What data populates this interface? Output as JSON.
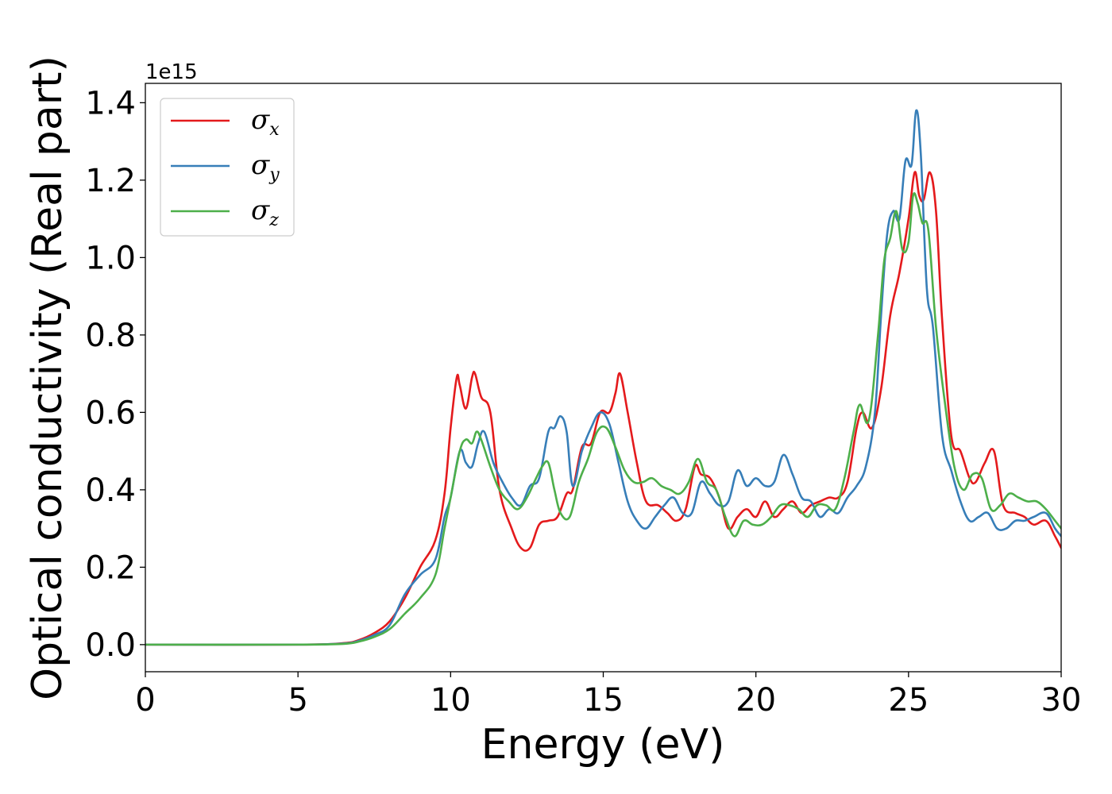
{
  "chart_data": {
    "type": "line",
    "xlabel": "Energy (eV)",
    "ylabel": "Optical conductivity (Real part)",
    "y_offset_label": "1e15",
    "xlim": [
      0,
      30
    ],
    "ylim": [
      -0.07,
      1.45
    ],
    "y_scale_factor": 1000000000000000.0,
    "x_ticks": [
      0,
      5,
      10,
      15,
      20,
      25,
      30
    ],
    "x_tick_labels": [
      "0",
      "5",
      "10",
      "15",
      "20",
      "25",
      "30"
    ],
    "y_ticks": [
      0.0,
      0.2,
      0.4,
      0.6,
      0.8,
      1.0,
      1.2,
      1.4
    ],
    "y_tick_labels": [
      "0.0",
      "0.2",
      "0.4",
      "0.6",
      "0.8",
      "1.0",
      "1.2",
      "1.4"
    ],
    "grid": false,
    "legend_position": "top-left",
    "series": [
      {
        "name": "σx",
        "legend_base": "σ",
        "legend_sub": "x",
        "color": "#e41a1c",
        "x": [
          0,
          5,
          6.5,
          7.0,
          7.5,
          8.0,
          8.5,
          9.0,
          9.5,
          9.8,
          10.0,
          10.2,
          10.3,
          10.5,
          10.7,
          10.8,
          11.0,
          11.3,
          11.6,
          12.0,
          12.3,
          12.6,
          12.9,
          13.2,
          13.5,
          13.8,
          14.0,
          14.3,
          14.6,
          14.9,
          15.2,
          15.4,
          15.55,
          15.8,
          16.1,
          16.4,
          16.8,
          17.1,
          17.4,
          17.7,
          18.0,
          18.2,
          18.5,
          18.8,
          19.1,
          19.4,
          19.7,
          20.0,
          20.3,
          20.6,
          20.9,
          21.2,
          21.5,
          21.8,
          22.1,
          22.4,
          22.7,
          23.0,
          23.3,
          23.5,
          23.8,
          24.1,
          24.4,
          24.7,
          25.0,
          25.2,
          25.35,
          25.5,
          25.7,
          25.9,
          26.1,
          26.4,
          26.7,
          27.0,
          27.2,
          27.5,
          27.8,
          28.1,
          28.5,
          28.8,
          29.1,
          29.5,
          29.8,
          30.0
        ],
        "y": [
          0.0,
          0.0,
          0.004,
          0.012,
          0.03,
          0.06,
          0.12,
          0.2,
          0.27,
          0.39,
          0.56,
          0.69,
          0.67,
          0.61,
          0.69,
          0.7,
          0.64,
          0.6,
          0.4,
          0.3,
          0.25,
          0.25,
          0.31,
          0.32,
          0.33,
          0.39,
          0.4,
          0.51,
          0.52,
          0.6,
          0.6,
          0.65,
          0.7,
          0.6,
          0.47,
          0.37,
          0.36,
          0.34,
          0.32,
          0.35,
          0.46,
          0.44,
          0.43,
          0.38,
          0.3,
          0.33,
          0.35,
          0.33,
          0.37,
          0.33,
          0.35,
          0.37,
          0.34,
          0.36,
          0.37,
          0.38,
          0.38,
          0.42,
          0.56,
          0.6,
          0.56,
          0.66,
          0.85,
          0.96,
          1.1,
          1.22,
          1.16,
          1.15,
          1.22,
          1.12,
          0.84,
          0.54,
          0.5,
          0.43,
          0.42,
          0.47,
          0.5,
          0.36,
          0.34,
          0.33,
          0.31,
          0.32,
          0.28,
          0.25
        ]
      },
      {
        "name": "σy",
        "legend_base": "σ",
        "legend_sub": "y",
        "color": "#377eb8",
        "x": [
          0,
          5,
          6.5,
          7.0,
          7.5,
          8.0,
          8.5,
          9.0,
          9.5,
          9.8,
          10.0,
          10.3,
          10.5,
          10.7,
          10.9,
          11.1,
          11.4,
          11.7,
          12.0,
          12.3,
          12.6,
          12.9,
          13.2,
          13.4,
          13.6,
          13.8,
          14.0,
          14.3,
          14.6,
          14.9,
          15.2,
          15.5,
          15.8,
          16.1,
          16.4,
          16.7,
          17.0,
          17.3,
          17.6,
          17.9,
          18.2,
          18.5,
          18.8,
          19.1,
          19.4,
          19.7,
          20.0,
          20.3,
          20.6,
          20.9,
          21.2,
          21.5,
          21.8,
          22.1,
          22.4,
          22.7,
          23.0,
          23.3,
          23.6,
          23.9,
          24.1,
          24.3,
          24.5,
          24.7,
          24.9,
          25.1,
          25.25,
          25.4,
          25.6,
          25.8,
          26.1,
          26.4,
          26.7,
          27.0,
          27.3,
          27.6,
          27.9,
          28.2,
          28.5,
          28.8,
          29.1,
          29.5,
          29.8,
          30.0
        ],
        "y": [
          0.0,
          0.0,
          0.003,
          0.01,
          0.025,
          0.05,
          0.13,
          0.18,
          0.22,
          0.33,
          0.38,
          0.5,
          0.47,
          0.46,
          0.52,
          0.55,
          0.47,
          0.42,
          0.38,
          0.36,
          0.41,
          0.43,
          0.55,
          0.56,
          0.59,
          0.55,
          0.41,
          0.5,
          0.56,
          0.6,
          0.57,
          0.47,
          0.37,
          0.32,
          0.3,
          0.33,
          0.36,
          0.38,
          0.34,
          0.34,
          0.42,
          0.39,
          0.36,
          0.37,
          0.45,
          0.41,
          0.43,
          0.41,
          0.42,
          0.49,
          0.44,
          0.38,
          0.37,
          0.33,
          0.35,
          0.34,
          0.38,
          0.41,
          0.46,
          0.6,
          0.85,
          1.06,
          1.12,
          1.1,
          1.25,
          1.24,
          1.38,
          1.27,
          0.92,
          0.82,
          0.54,
          0.45,
          0.37,
          0.32,
          0.33,
          0.34,
          0.3,
          0.3,
          0.32,
          0.32,
          0.33,
          0.34,
          0.3,
          0.28
        ]
      },
      {
        "name": "σz",
        "legend_base": "σ",
        "legend_sub": "z",
        "color": "#4daf4a",
        "x": [
          0,
          5,
          6.5,
          7.0,
          7.5,
          8.0,
          8.5,
          9.0,
          9.5,
          9.8,
          10.0,
          10.3,
          10.5,
          10.7,
          10.85,
          11.0,
          11.3,
          11.6,
          11.9,
          12.2,
          12.5,
          12.8,
          13.0,
          13.2,
          13.4,
          13.6,
          13.9,
          14.2,
          14.5,
          14.8,
          15.1,
          15.4,
          15.7,
          16.0,
          16.3,
          16.6,
          16.9,
          17.2,
          17.5,
          17.8,
          18.1,
          18.4,
          18.7,
          19.0,
          19.3,
          19.6,
          19.9,
          20.2,
          20.5,
          20.8,
          21.1,
          21.4,
          21.7,
          22.0,
          22.3,
          22.6,
          22.9,
          23.2,
          23.4,
          23.7,
          24.0,
          24.2,
          24.4,
          24.6,
          24.8,
          25.0,
          25.15,
          25.3,
          25.45,
          25.65,
          25.9,
          26.2,
          26.5,
          26.8,
          27.1,
          27.4,
          27.7,
          28.0,
          28.3,
          28.6,
          28.9,
          29.2,
          29.5,
          29.8,
          30.0
        ],
        "y": [
          0.0,
          0.0,
          0.002,
          0.008,
          0.02,
          0.04,
          0.08,
          0.12,
          0.18,
          0.3,
          0.38,
          0.5,
          0.53,
          0.52,
          0.55,
          0.53,
          0.46,
          0.4,
          0.37,
          0.35,
          0.38,
          0.43,
          0.46,
          0.47,
          0.4,
          0.34,
          0.33,
          0.42,
          0.48,
          0.55,
          0.56,
          0.51,
          0.45,
          0.42,
          0.42,
          0.43,
          0.41,
          0.4,
          0.39,
          0.42,
          0.48,
          0.42,
          0.4,
          0.33,
          0.28,
          0.32,
          0.31,
          0.31,
          0.33,
          0.36,
          0.36,
          0.35,
          0.33,
          0.36,
          0.36,
          0.35,
          0.43,
          0.55,
          0.62,
          0.58,
          0.8,
          0.99,
          1.05,
          1.12,
          1.02,
          1.04,
          1.16,
          1.14,
          1.09,
          1.07,
          0.82,
          0.62,
          0.46,
          0.4,
          0.44,
          0.43,
          0.35,
          0.36,
          0.39,
          0.38,
          0.37,
          0.37,
          0.35,
          0.32,
          0.3
        ]
      }
    ]
  }
}
